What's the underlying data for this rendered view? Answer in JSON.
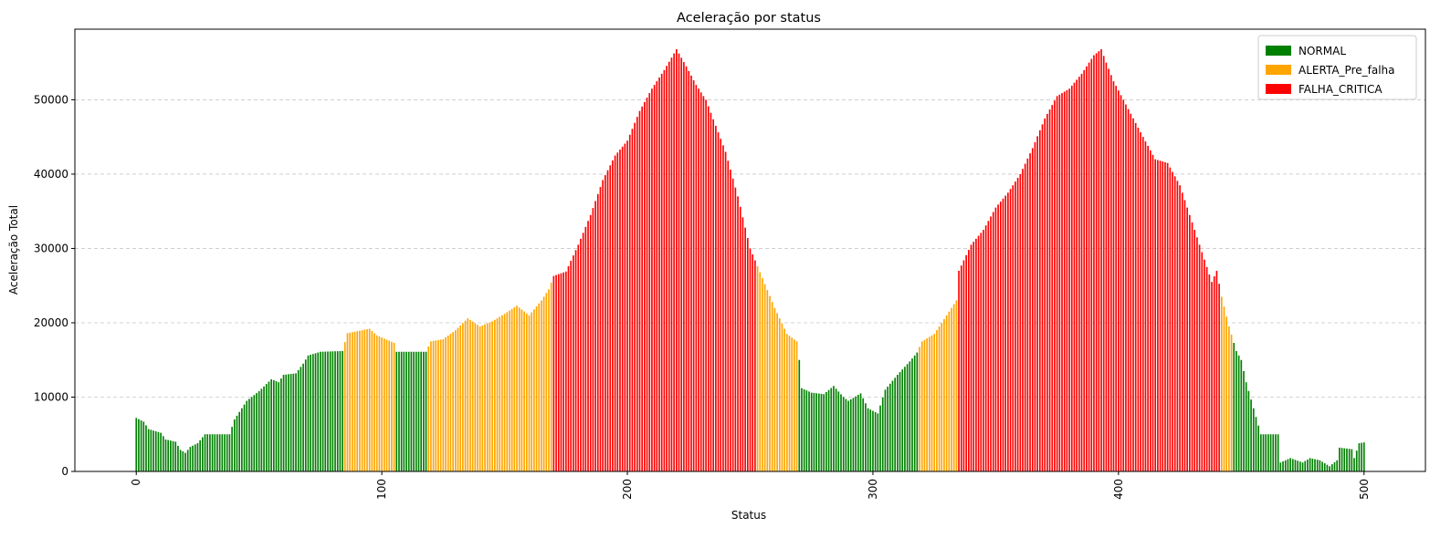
{
  "chart_data": {
    "type": "bar",
    "title": "Aceleração por status",
    "xlabel": "Status",
    "ylabel": "Aceleração Total",
    "xlim": [
      -25,
      525
    ],
    "ylim": [
      0,
      59500
    ],
    "x_ticks": [
      0,
      100,
      200,
      300,
      400,
      500
    ],
    "y_ticks": [
      0,
      10000,
      20000,
      30000,
      40000,
      50000
    ],
    "x_tick_rotation": 90,
    "grid": {
      "y": true,
      "style": "dashed"
    },
    "legend": {
      "position": "top-right",
      "entries": [
        {
          "name": "NORMAL",
          "color": "#008000"
        },
        {
          "name": "ALERTA_Pre_falha",
          "color": "#ffa500"
        },
        {
          "name": "FALHA_CRITICA",
          "color": "#ff0000"
        }
      ]
    },
    "anchors": [
      [
        0,
        7200
      ],
      [
        3,
        6700
      ],
      [
        5,
        5700
      ],
      [
        10,
        5200
      ],
      [
        12,
        4300
      ],
      [
        16,
        4000
      ],
      [
        18,
        2900
      ],
      [
        20,
        2500
      ],
      [
        22,
        3300
      ],
      [
        25,
        3800
      ],
      [
        28,
        5000
      ],
      [
        38,
        5000
      ],
      [
        40,
        7000
      ],
      [
        45,
        9500
      ],
      [
        50,
        10800
      ],
      [
        55,
        12400
      ],
      [
        58,
        12000
      ],
      [
        60,
        13000
      ],
      [
        65,
        13200
      ],
      [
        68,
        14500
      ],
      [
        70,
        15600
      ],
      [
        75,
        16100
      ],
      [
        84,
        16200
      ],
      [
        86,
        18600
      ],
      [
        95,
        19200
      ],
      [
        98,
        18300
      ],
      [
        105,
        17300
      ],
      [
        106,
        16100
      ],
      [
        118,
        16100
      ],
      [
        120,
        17500
      ],
      [
        125,
        17800
      ],
      [
        130,
        19000
      ],
      [
        135,
        20600
      ],
      [
        140,
        19500
      ],
      [
        145,
        20200
      ],
      [
        150,
        21200
      ],
      [
        155,
        22300
      ],
      [
        160,
        21000
      ],
      [
        165,
        23000
      ],
      [
        168,
        24500
      ],
      [
        170,
        26300
      ],
      [
        175,
        26900
      ],
      [
        180,
        30500
      ],
      [
        185,
        34500
      ],
      [
        190,
        39200
      ],
      [
        195,
        42500
      ],
      [
        200,
        44500
      ],
      [
        205,
        48500
      ],
      [
        210,
        51500
      ],
      [
        215,
        54000
      ],
      [
        220,
        56800
      ],
      [
        224,
        54500
      ],
      [
        228,
        52000
      ],
      [
        232,
        50000
      ],
      [
        236,
        46500
      ],
      [
        240,
        43000
      ],
      [
        245,
        37000
      ],
      [
        250,
        30000
      ],
      [
        255,
        26000
      ],
      [
        260,
        22000
      ],
      [
        265,
        18500
      ],
      [
        269,
        17500
      ],
      [
        270,
        15000
      ],
      [
        271,
        11200
      ],
      [
        275,
        10600
      ],
      [
        280,
        10400
      ],
      [
        284,
        11500
      ],
      [
        288,
        10000
      ],
      [
        290,
        9500
      ],
      [
        295,
        10500
      ],
      [
        298,
        8500
      ],
      [
        302,
        7800
      ],
      [
        305,
        11000
      ],
      [
        310,
        13000
      ],
      [
        315,
        14800
      ],
      [
        318,
        16000
      ],
      [
        320,
        17500
      ],
      [
        325,
        18500
      ],
      [
        330,
        21000
      ],
      [
        334,
        23000
      ],
      [
        335,
        27000
      ],
      [
        340,
        30500
      ],
      [
        345,
        32500
      ],
      [
        350,
        35500
      ],
      [
        355,
        37500
      ],
      [
        360,
        40000
      ],
      [
        365,
        43500
      ],
      [
        370,
        47500
      ],
      [
        375,
        50500
      ],
      [
        380,
        51500
      ],
      [
        385,
        53500
      ],
      [
        390,
        56000
      ],
      [
        393,
        56800
      ],
      [
        395,
        55000
      ],
      [
        398,
        52500
      ],
      [
        402,
        50000
      ],
      [
        406,
        47500
      ],
      [
        410,
        45000
      ],
      [
        415,
        42000
      ],
      [
        420,
        41500
      ],
      [
        425,
        38500
      ],
      [
        430,
        33500
      ],
      [
        435,
        28500
      ],
      [
        438,
        25500
      ],
      [
        440,
        27000
      ],
      [
        442,
        23500
      ],
      [
        445,
        19500
      ],
      [
        448,
        16200
      ],
      [
        450,
        15000
      ],
      [
        452,
        12000
      ],
      [
        455,
        8500
      ],
      [
        458,
        5000
      ],
      [
        465,
        5000
      ],
      [
        466,
        1200
      ],
      [
        470,
        1800
      ],
      [
        475,
        1200
      ],
      [
        478,
        1800
      ],
      [
        482,
        1500
      ],
      [
        486,
        700
      ],
      [
        489,
        1500
      ],
      [
        490,
        3200
      ],
      [
        495,
        3000
      ],
      [
        496,
        1800
      ],
      [
        498,
        3800
      ],
      [
        500,
        3900
      ]
    ],
    "segments": [
      {
        "from": 0,
        "to": 84,
        "status": "NORMAL"
      },
      {
        "from": 85,
        "to": 105,
        "status": "ALERTA_Pre_falha"
      },
      {
        "from": 106,
        "to": 118,
        "status": "NORMAL"
      },
      {
        "from": 119,
        "to": 169,
        "status": "ALERTA_Pre_falha"
      },
      {
        "from": 170,
        "to": 252,
        "status": "FALHA_CRITICA"
      },
      {
        "from": 253,
        "to": 269,
        "status": "ALERTA_Pre_falha"
      },
      {
        "from": 270,
        "to": 318,
        "status": "NORMAL"
      },
      {
        "from": 319,
        "to": 334,
        "status": "ALERTA_Pre_falha"
      },
      {
        "from": 335,
        "to": 441,
        "status": "FALHA_CRITICA"
      },
      {
        "from": 442,
        "to": 446,
        "status": "ALERTA_Pre_falha"
      },
      {
        "from": 447,
        "to": 500,
        "status": "NORMAL"
      }
    ]
  }
}
